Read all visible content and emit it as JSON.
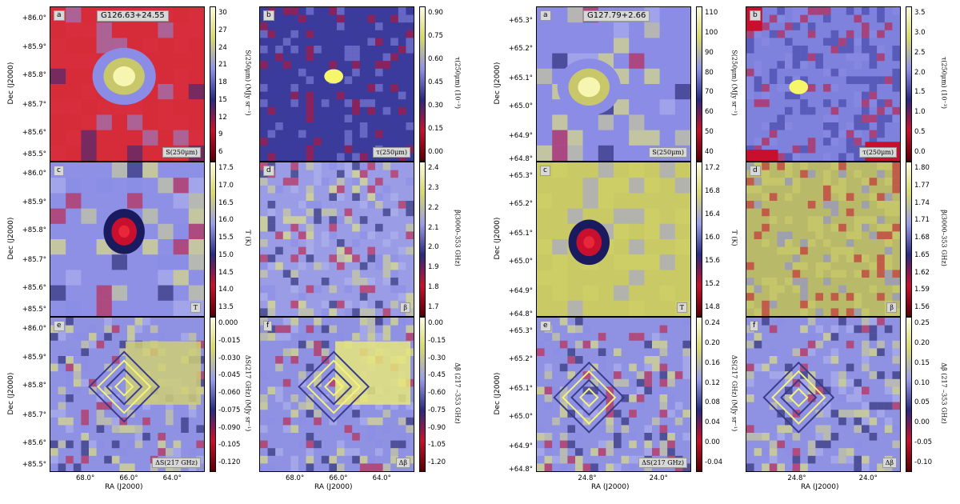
{
  "figures": [
    {
      "id": "left",
      "title": "G126.63+24.55",
      "yticks": [
        "+86.0°",
        "+85.9°",
        "+85.8°",
        "+85.7°",
        "+85.6°",
        "+85.5°"
      ],
      "ylabel": "Dec (J2000)",
      "xlabel": "RA (J2000)",
      "xticks": [
        "68.0°",
        "66.0°",
        "64.0°"
      ],
      "panels": [
        {
          "letter": "a",
          "legend": "S(250μm)",
          "cb_ticks": [
            "30",
            "27",
            "24",
            "21",
            "18",
            "15",
            "12",
            "9",
            "6"
          ],
          "cb_label": "S(250μm) (MJy sr⁻¹)"
        },
        {
          "letter": "b",
          "legend": "τ(250μm)",
          "cb_ticks": [
            "0.90",
            "0.75",
            "0.60",
            "0.45",
            "0.30",
            "0.15",
            "0.00"
          ],
          "cb_label": "τ(250μm) (10⁻³)"
        },
        {
          "letter": "c",
          "legend": "T",
          "cb_ticks": [
            "17.5",
            "17.0",
            "16.5",
            "16.0",
            "15.5",
            "15.0",
            "14.5",
            "14.0",
            "13.5"
          ],
          "cb_label": "T (K)"
        },
        {
          "letter": "d",
          "legend": "β",
          "cb_ticks": [
            "2.4",
            "2.3",
            "2.2",
            "2.1",
            "2.0",
            "1.9",
            "1.8",
            "1.7"
          ],
          "cb_label": "β(3000–353 GHz)"
        },
        {
          "letter": "e",
          "legend": "ΔS(217 GHz)",
          "cb_ticks": [
            "0.000",
            "-0.015",
            "-0.030",
            "-0.045",
            "-0.060",
            "-0.075",
            "-0.090",
            "-0.105",
            "-0.120"
          ],
          "cb_label": "ΔS(217 GHz) (MJy sr⁻¹)"
        },
        {
          "letter": "f",
          "legend": "Δβ",
          "cb_ticks": [
            "0.00",
            "-0.15",
            "-0.30",
            "-0.45",
            "-0.60",
            "-0.75",
            "-0.90",
            "-1.05",
            "-1.20"
          ],
          "cb_label": "Δβ (217 –353 GHz)"
        }
      ]
    },
    {
      "id": "right",
      "title": "G127.79+2.66",
      "yticks": [
        "+65.3°",
        "+65.2°",
        "+65.1°",
        "+65.0°",
        "+64.9°",
        "+64.8°"
      ],
      "ylabel": "Dec (J2000)",
      "xlabel": "RA (J2000)",
      "xticks": [
        "24.8°",
        "24.0°"
      ],
      "panels": [
        {
          "letter": "a",
          "legend": "S(250μm)",
          "cb_ticks": [
            "110",
            "100",
            "90",
            "80",
            "70",
            "60",
            "50",
            "40"
          ],
          "cb_label": "S(250μm) (MJy sr⁻¹)"
        },
        {
          "letter": "b",
          "legend": "τ(250μm)",
          "cb_ticks": [
            "3.5",
            "3.0",
            "2.5",
            "2.0",
            "1.5",
            "1.0",
            "0.5",
            "0.0"
          ],
          "cb_label": "τ(250μm) (10⁻³)"
        },
        {
          "letter": "c",
          "legend": "T",
          "cb_ticks": [
            "17.2",
            "16.8",
            "16.4",
            "16.0",
            "15.6",
            "15.2",
            "14.8"
          ],
          "cb_label": "T (K)"
        },
        {
          "letter": "d",
          "legend": "β",
          "cb_ticks": [
            "1.80",
            "1.77",
            "1.74",
            "1.71",
            "1.68",
            "1.65",
            "1.62",
            "1.59",
            "1.56"
          ],
          "cb_label": "β(3000–353 GHz)"
        },
        {
          "letter": "e",
          "legend": "ΔS(217 GHz)",
          "cb_ticks": [
            "0.24",
            "0.20",
            "0.16",
            "0.12",
            "0.08",
            "0.04",
            "0.00",
            "-0.04"
          ],
          "cb_label": "ΔS(217 GHz) (MJy sr⁻¹)"
        },
        {
          "letter": "f",
          "legend": "Δβ",
          "cb_ticks": [
            "0.25",
            "0.20",
            "0.15",
            "0.10",
            "0.05",
            "0.00",
            "-0.05",
            "-0.10"
          ],
          "cb_label": "Δβ (217 –353 GHz)"
        }
      ]
    }
  ],
  "colors": {
    "low": "#c8102e",
    "mid": "#8a8ce6",
    "high": "#f2f26a",
    "dark": "#1a1a5e"
  }
}
